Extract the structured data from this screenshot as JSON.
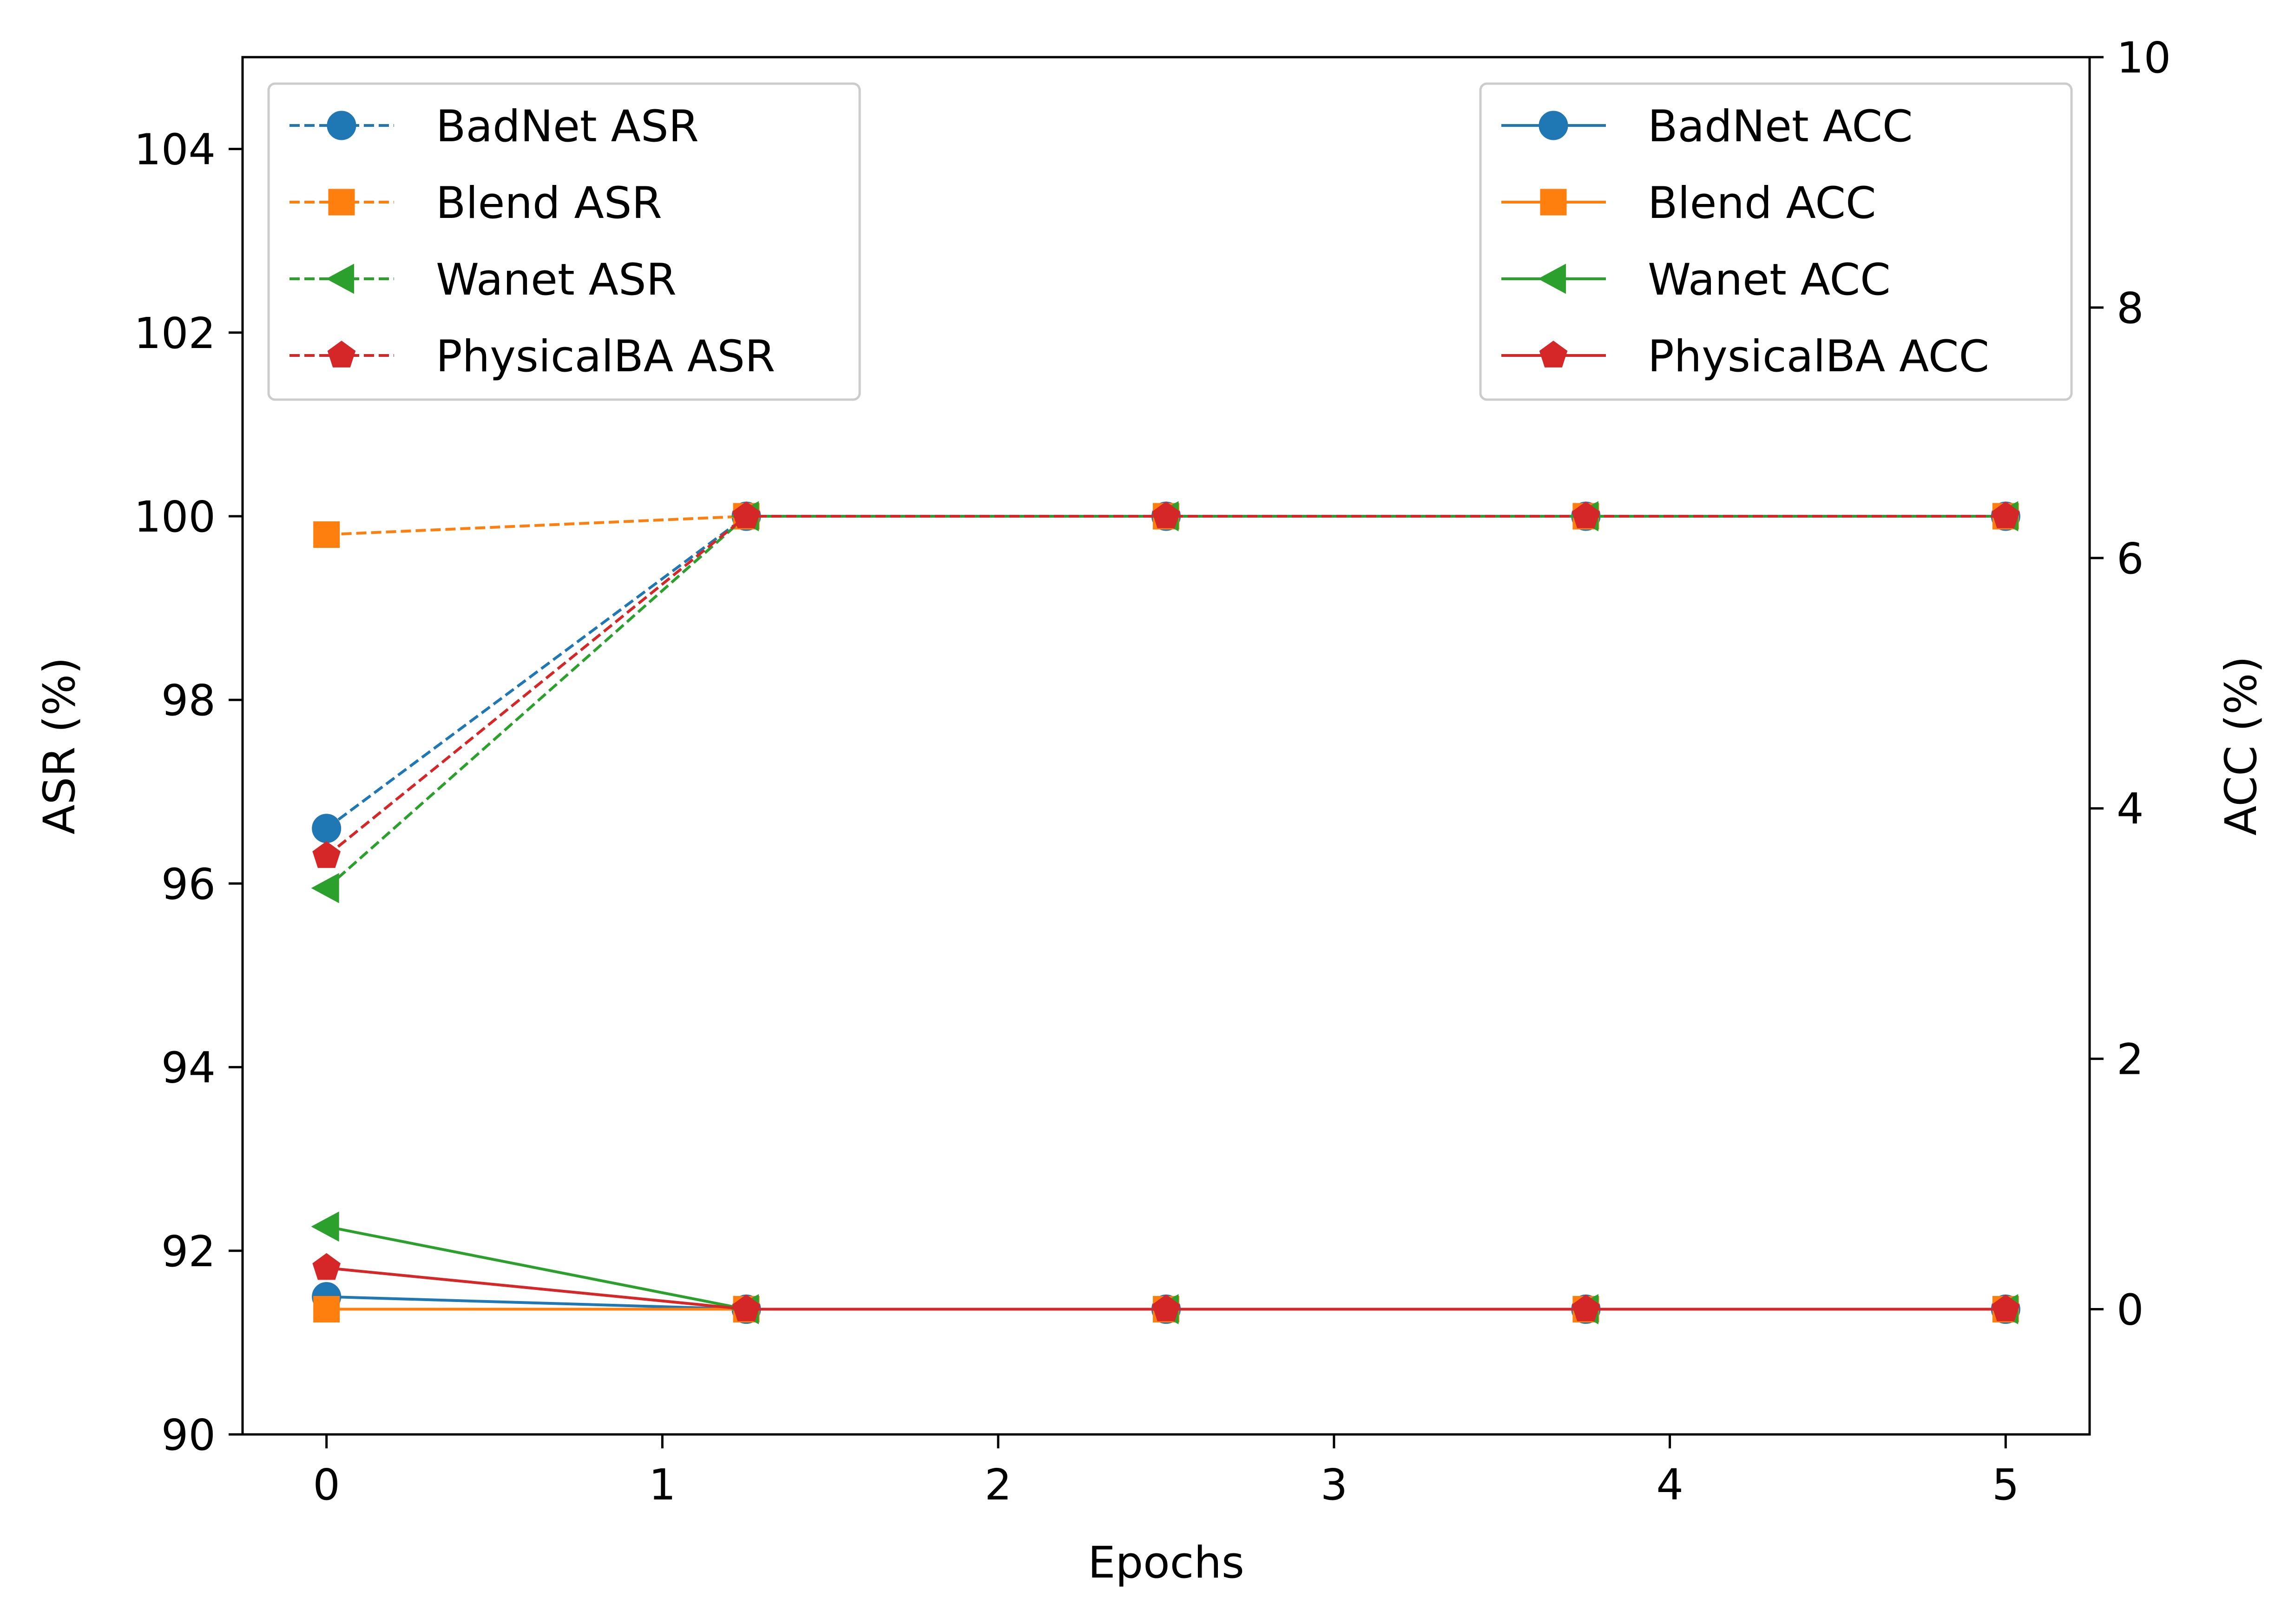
{
  "chart_data": {
    "type": "line",
    "title": "",
    "xlabel": "Epochs",
    "ylabel_left": "ASR (%)",
    "ylabel_right": "ACC (%)",
    "xlim": [
      -0.25,
      5.25
    ],
    "ylim_left": [
      90,
      105
    ],
    "ylim_right": [
      -1,
      10
    ],
    "x_ticks": [
      0,
      1,
      2,
      3,
      4,
      5
    ],
    "y_left_ticks": [
      90,
      92,
      94,
      96,
      98,
      100,
      102,
      104
    ],
    "y_right_ticks": [
      0,
      2,
      4,
      6,
      8,
      10
    ],
    "x": [
      0,
      1.25,
      2.5,
      3.75,
      5
    ],
    "grid": false,
    "series": [
      {
        "name": "BadNet ASR",
        "axis": "left",
        "style": "dashed",
        "marker": "circle",
        "color": "#1f77b4",
        "values": [
          96.6,
          100,
          100,
          100,
          100
        ]
      },
      {
        "name": "Blend ASR",
        "axis": "left",
        "style": "dashed",
        "marker": "square",
        "color": "#ff7f0e",
        "values": [
          99.8,
          100,
          100,
          100,
          100
        ]
      },
      {
        "name": "Wanet ASR",
        "axis": "left",
        "style": "dashed",
        "marker": "triangle-left",
        "color": "#2ca02c",
        "values": [
          95.95,
          100,
          100,
          100,
          100
        ]
      },
      {
        "name": "PhysicalBA ASR",
        "axis": "left",
        "style": "dashed",
        "marker": "pentagon",
        "color": "#d62728",
        "values": [
          96.3,
          100,
          100,
          100,
          100
        ]
      },
      {
        "name": "BadNet ACC",
        "axis": "right",
        "style": "solid",
        "marker": "circle",
        "color": "#1f77b4",
        "values": [
          0.1,
          0,
          0,
          0,
          0
        ]
      },
      {
        "name": "Blend ACC",
        "axis": "right",
        "style": "solid",
        "marker": "square",
        "color": "#ff7f0e",
        "values": [
          0,
          0,
          0,
          0,
          0
        ]
      },
      {
        "name": "Wanet ACC",
        "axis": "right",
        "style": "solid",
        "marker": "triangle-left",
        "color": "#2ca02c",
        "values": [
          0.66,
          0,
          0,
          0,
          0
        ]
      },
      {
        "name": "PhysicalBA ACC",
        "axis": "right",
        "style": "solid",
        "marker": "pentagon",
        "color": "#d62728",
        "values": [
          0.33,
          0,
          0,
          0,
          0
        ]
      }
    ],
    "legends": [
      {
        "placement": "top-left",
        "entries": [
          "BadNet ASR",
          "Blend ASR",
          "Wanet ASR",
          "PhysicalBA ASR"
        ]
      },
      {
        "placement": "top-right",
        "entries": [
          "BadNet ACC",
          "Blend ACC",
          "Wanet ACC",
          "PhysicalBA ACC"
        ]
      }
    ]
  }
}
